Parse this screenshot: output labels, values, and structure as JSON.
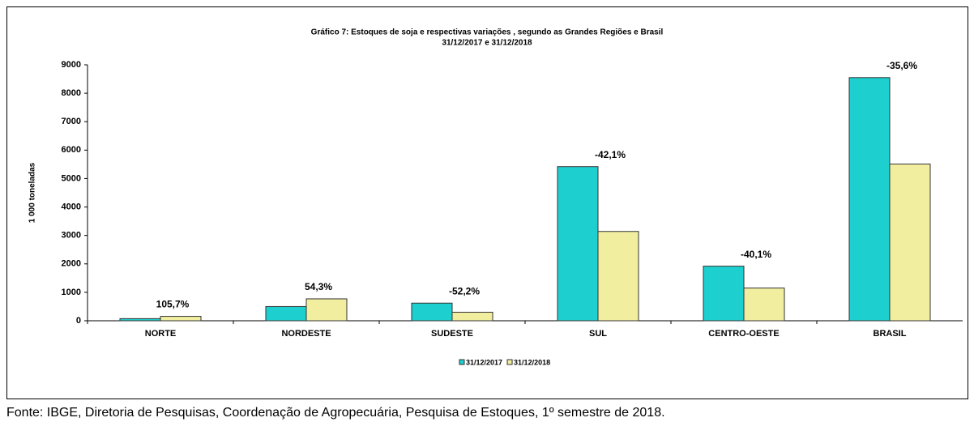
{
  "chart_data": {
    "type": "bar",
    "title": "Gráfico 7: Estoques de soja e respectivas variações , segundo as Grandes Regiões e Brasil",
    "subtitle": "31/12/2017 e 31/12/2018",
    "y_label": "1 000 toneladas",
    "categories": [
      "NORTE",
      "NORDESTE",
      "SUDESTE",
      "SUL",
      "CENTRO-OESTE",
      "BRASIL"
    ],
    "series": [
      {
        "name": "31/12/2017",
        "color": "#1ecfcf",
        "values": [
          75,
          500,
          620,
          5420,
          1920,
          8550
        ]
      },
      {
        "name": "31/12/2018",
        "color": "#f2eea0",
        "values": [
          155,
          770,
          300,
          3140,
          1150,
          5510
        ]
      }
    ],
    "annotations": [
      "105,7%",
      "54,3%",
      "-52,2%",
      "-42,1%",
      "-40,1%",
      "-35,6%"
    ],
    "ylim": [
      0,
      9000
    ],
    "yticks": [
      0,
      1000,
      2000,
      3000,
      4000,
      5000,
      6000,
      7000,
      8000,
      9000
    ],
    "legend": "bottom",
    "source": "Fonte: IBGE, Diretoria de Pesquisas, Coordenação de Agropecuária, Pesquisa de Estoques, 1º semestre de 2018."
  }
}
